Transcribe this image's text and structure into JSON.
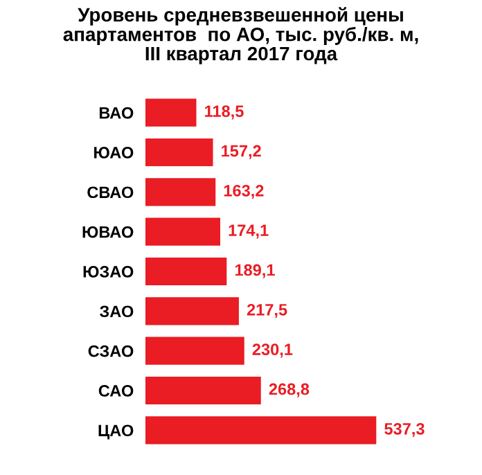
{
  "chart_data": {
    "type": "bar",
    "orientation": "horizontal",
    "title": "Уровень средневзвешенной цены\nапартаментов  по АО, тыс. руб./кв. м,\nIII квартал 2017 года",
    "categories": [
      "ВАО",
      "ЮАО",
      "СВАО",
      "ЮВАО",
      "ЮЗАО",
      "ЗАО",
      "СЗАО",
      "САО",
      "ЦАО"
    ],
    "values": [
      118.5,
      157.2,
      163.2,
      174.1,
      189.1,
      217.5,
      230.1,
      268.8,
      537.3
    ],
    "value_labels": [
      "118,5",
      "157,2",
      "163,2",
      "174,1",
      "189,1",
      "217,5",
      "230,1",
      "268,8",
      "537,3"
    ],
    "color": "#ea1c24",
    "grid": false,
    "legend": false
  }
}
